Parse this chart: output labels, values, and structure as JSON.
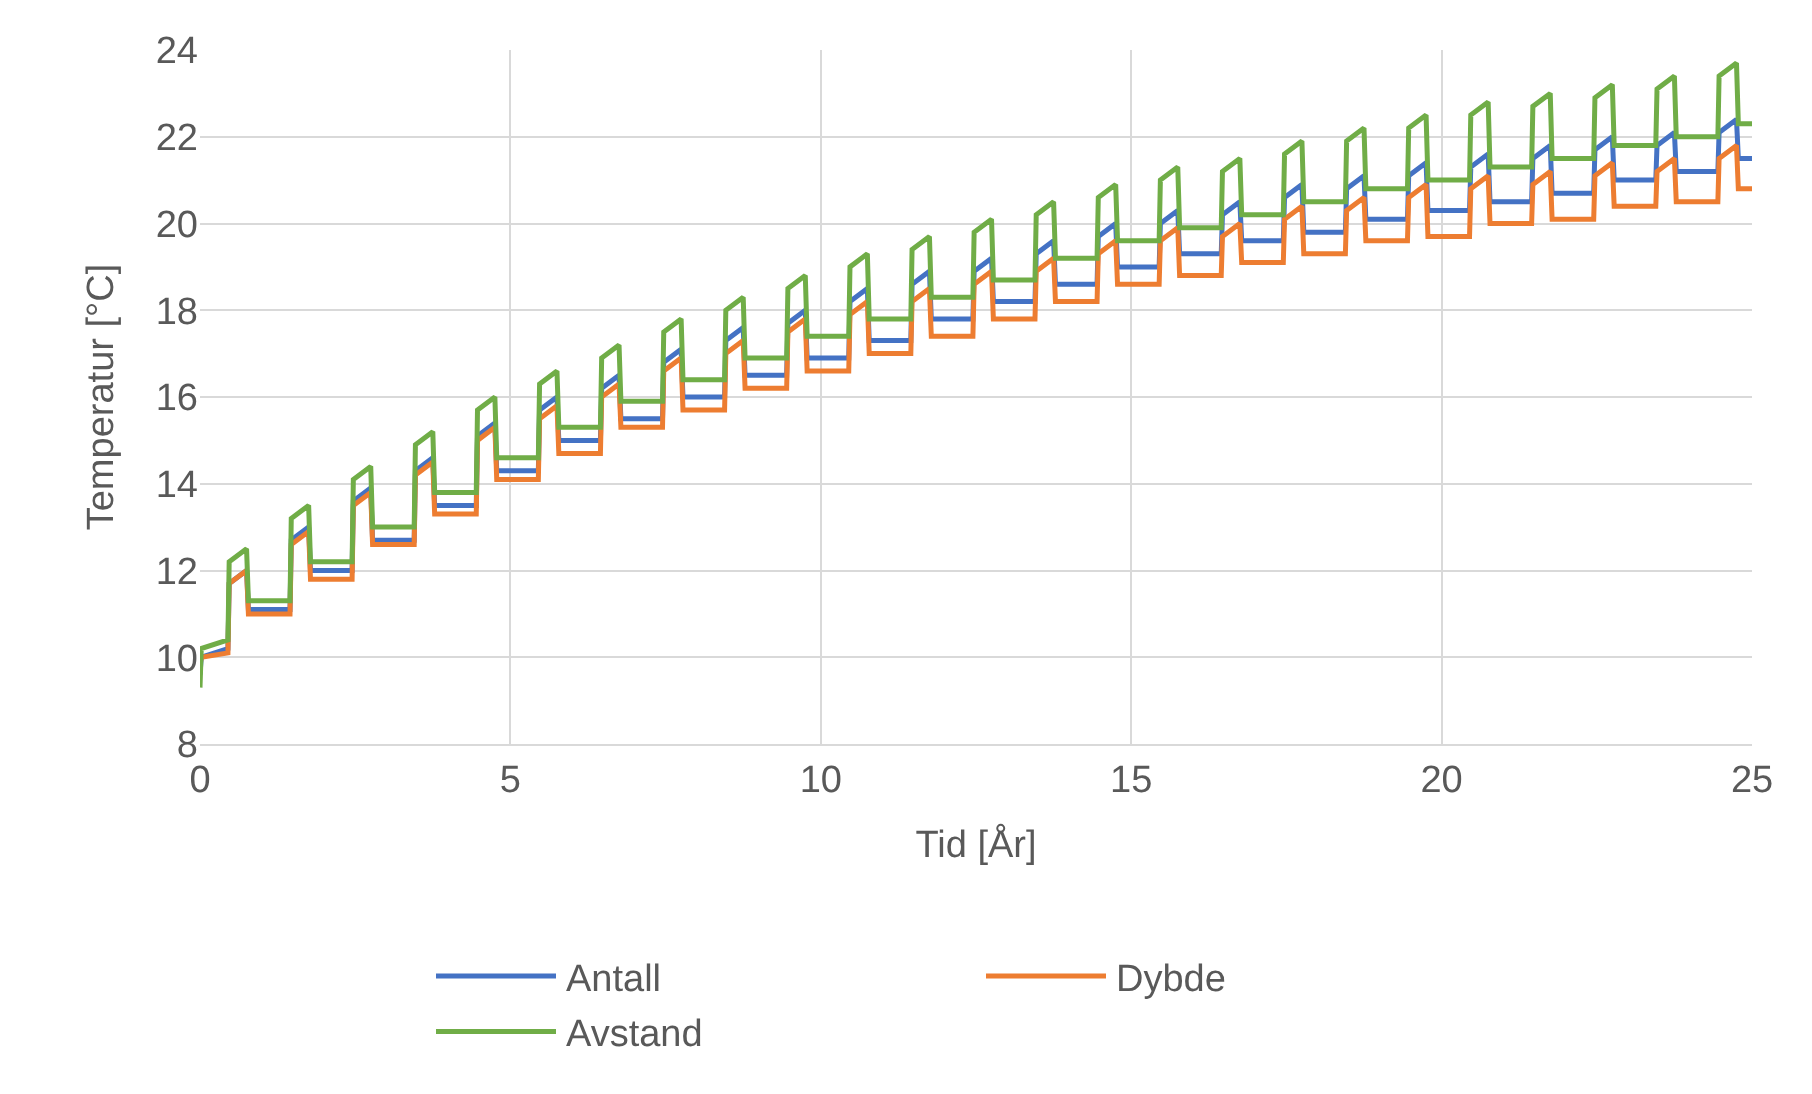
{
  "chart_data": {
    "type": "line",
    "xlabel": "Tid [År]",
    "ylabel": "Temperatur [°C]",
    "x": [
      0,
      0.02,
      0.45,
      0.47,
      0.75,
      0.78,
      1.45,
      1.47,
      1.75,
      1.78,
      2.45,
      2.47,
      2.75,
      2.78,
      3.45,
      3.47,
      3.75,
      3.78,
      4.45,
      4.47,
      4.75,
      4.78,
      5.45,
      5.47,
      5.75,
      5.78,
      6.45,
      6.47,
      6.75,
      6.78,
      7.45,
      7.47,
      7.75,
      7.78,
      8.45,
      8.47,
      8.75,
      8.78,
      9.45,
      9.47,
      9.75,
      9.78,
      10.45,
      10.47,
      10.75,
      10.78,
      11.45,
      11.47,
      11.75,
      11.78,
      12.45,
      12.47,
      12.75,
      12.78,
      13.45,
      13.47,
      13.75,
      13.78,
      14.45,
      14.47,
      14.75,
      14.78,
      15.45,
      15.47,
      15.75,
      15.78,
      16.45,
      16.47,
      16.75,
      16.78,
      17.45,
      17.47,
      17.75,
      17.78,
      18.45,
      18.47,
      18.75,
      18.78,
      19.45,
      19.47,
      19.75,
      19.78,
      20.45,
      20.47,
      20.75,
      20.78,
      21.45,
      21.47,
      21.75,
      21.78,
      22.45,
      22.47,
      22.75,
      22.78,
      23.45,
      23.47,
      23.75,
      23.78,
      24.45,
      24.47,
      24.75,
      24.78,
      25
    ],
    "series": [
      {
        "name": "Antall",
        "color": "#4472c4",
        "values": [
          9.6,
          10.0,
          10.2,
          11.7,
          12.0,
          11.1,
          11.1,
          12.7,
          13.0,
          12.0,
          12.0,
          13.6,
          13.9,
          12.7,
          12.7,
          14.3,
          14.6,
          13.5,
          13.5,
          15.1,
          15.4,
          14.3,
          14.3,
          15.7,
          16.0,
          15.0,
          15.0,
          16.2,
          16.5,
          15.5,
          15.5,
          16.8,
          17.1,
          16.0,
          16.0,
          17.3,
          17.6,
          16.5,
          16.5,
          17.7,
          18.0,
          16.9,
          16.9,
          18.2,
          18.5,
          17.3,
          17.3,
          18.6,
          18.9,
          17.8,
          17.8,
          18.9,
          19.2,
          18.2,
          18.2,
          19.3,
          19.6,
          18.6,
          18.6,
          19.7,
          20.0,
          19.0,
          19.0,
          20.0,
          20.3,
          19.3,
          19.3,
          20.2,
          20.5,
          19.6,
          19.6,
          20.6,
          20.9,
          19.8,
          19.8,
          20.8,
          21.1,
          20.1,
          20.1,
          21.1,
          21.4,
          20.3,
          20.3,
          21.3,
          21.6,
          20.5,
          20.5,
          21.5,
          21.8,
          20.7,
          20.7,
          21.7,
          22.0,
          21.0,
          21.0,
          21.8,
          22.1,
          21.2,
          21.2,
          22.1,
          22.4,
          21.5,
          21.5
        ]
      },
      {
        "name": "Dybde",
        "color": "#ed7d31",
        "values": [
          9.8,
          10.0,
          10.1,
          11.7,
          12.0,
          11.0,
          11.0,
          12.6,
          12.9,
          11.8,
          11.8,
          13.5,
          13.8,
          12.6,
          12.6,
          14.2,
          14.5,
          13.3,
          13.3,
          15.0,
          15.3,
          14.1,
          14.1,
          15.5,
          15.8,
          14.7,
          14.7,
          16.0,
          16.3,
          15.3,
          15.3,
          16.6,
          16.9,
          15.7,
          15.7,
          17.0,
          17.3,
          16.2,
          16.2,
          17.5,
          17.8,
          16.6,
          16.6,
          17.9,
          18.2,
          17.0,
          17.0,
          18.2,
          18.5,
          17.4,
          17.4,
          18.6,
          18.9,
          17.8,
          17.8,
          18.9,
          19.2,
          18.2,
          18.2,
          19.3,
          19.6,
          18.6,
          18.6,
          19.6,
          19.9,
          18.8,
          18.8,
          19.7,
          20.0,
          19.1,
          19.1,
          20.1,
          20.4,
          19.3,
          19.3,
          20.3,
          20.6,
          19.6,
          19.6,
          20.6,
          20.9,
          19.7,
          19.7,
          20.8,
          21.1,
          20.0,
          20.0,
          20.9,
          21.2,
          20.1,
          20.1,
          21.1,
          21.4,
          20.4,
          20.4,
          21.2,
          21.5,
          20.5,
          20.5,
          21.5,
          21.8,
          20.8,
          20.8
        ]
      },
      {
        "name": "Avstand",
        "color": "#70ad47",
        "values": [
          9.3,
          10.2,
          10.4,
          12.2,
          12.5,
          11.3,
          11.3,
          13.2,
          13.5,
          12.2,
          12.2,
          14.1,
          14.4,
          13.0,
          13.0,
          14.9,
          15.2,
          13.8,
          13.8,
          15.7,
          16.0,
          14.6,
          14.6,
          16.3,
          16.6,
          15.3,
          15.3,
          16.9,
          17.2,
          15.9,
          15.9,
          17.5,
          17.8,
          16.4,
          16.4,
          18.0,
          18.3,
          16.9,
          16.9,
          18.5,
          18.8,
          17.4,
          17.4,
          19.0,
          19.3,
          17.8,
          17.8,
          19.4,
          19.7,
          18.3,
          18.3,
          19.8,
          20.1,
          18.7,
          18.7,
          20.2,
          20.5,
          19.2,
          19.2,
          20.6,
          20.9,
          19.6,
          19.6,
          21.0,
          21.3,
          19.9,
          19.9,
          21.2,
          21.5,
          20.2,
          20.2,
          21.6,
          21.9,
          20.5,
          20.5,
          21.9,
          22.2,
          20.8,
          20.8,
          22.2,
          22.5,
          21.0,
          21.0,
          22.5,
          22.8,
          21.3,
          21.3,
          22.7,
          23.0,
          21.5,
          21.5,
          22.9,
          23.2,
          21.8,
          21.8,
          23.1,
          23.4,
          22.0,
          22.0,
          23.4,
          23.7,
          22.3,
          22.3
        ]
      }
    ],
    "xlim": [
      0,
      25
    ],
    "xticks": [
      0,
      5,
      10,
      15,
      20,
      25
    ],
    "ylim": [
      8,
      24
    ],
    "yticks": [
      8,
      10,
      12,
      14,
      16,
      18,
      20,
      22,
      24
    ],
    "grid": true,
    "legend": "bottom",
    "marker": "none",
    "line_style": "solid"
  }
}
